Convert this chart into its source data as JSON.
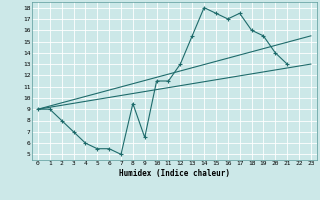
{
  "title": "",
  "xlabel": "Humidex (Indice chaleur)",
  "ylabel": "",
  "background_color": "#cce8e8",
  "grid_color": "#b0d4d4",
  "line_color": "#1e6b6b",
  "xlim": [
    -0.5,
    23.5
  ],
  "ylim": [
    4.5,
    18.5
  ],
  "xticks": [
    0,
    1,
    2,
    3,
    4,
    5,
    6,
    7,
    8,
    9,
    10,
    11,
    12,
    13,
    14,
    15,
    16,
    17,
    18,
    19,
    20,
    21,
    22,
    23
  ],
  "yticks": [
    5,
    6,
    7,
    8,
    9,
    10,
    11,
    12,
    13,
    14,
    15,
    16,
    17,
    18
  ],
  "line1_x": [
    0,
    1,
    2,
    3,
    4,
    5,
    6,
    7,
    8,
    9,
    10,
    11,
    12,
    13,
    14,
    15,
    16,
    17,
    18,
    19,
    20,
    21
  ],
  "line1_y": [
    9.0,
    9.0,
    8.0,
    7.0,
    6.0,
    5.5,
    5.5,
    5.0,
    9.5,
    6.5,
    11.5,
    11.5,
    13.0,
    15.5,
    18.0,
    17.5,
    17.0,
    17.5,
    16.0,
    15.5,
    14.0,
    13.0
  ],
  "line2_x": [
    0,
    23
  ],
  "line2_y": [
    9.0,
    13.0
  ],
  "line3_x": [
    0,
    23
  ],
  "line3_y": [
    9.0,
    15.5
  ],
  "marker_x": [
    0,
    1,
    2,
    3,
    4,
    5,
    6,
    7,
    8,
    9,
    10,
    11,
    12,
    13,
    14,
    15,
    16,
    17,
    18,
    19,
    20,
    21
  ],
  "marker_y": [
    9.0,
    9.0,
    8.0,
    7.0,
    6.0,
    5.5,
    5.5,
    5.0,
    9.5,
    6.5,
    11.5,
    11.5,
    13.0,
    15.5,
    18.0,
    17.5,
    17.0,
    17.5,
    16.0,
    15.5,
    14.0,
    13.0
  ]
}
